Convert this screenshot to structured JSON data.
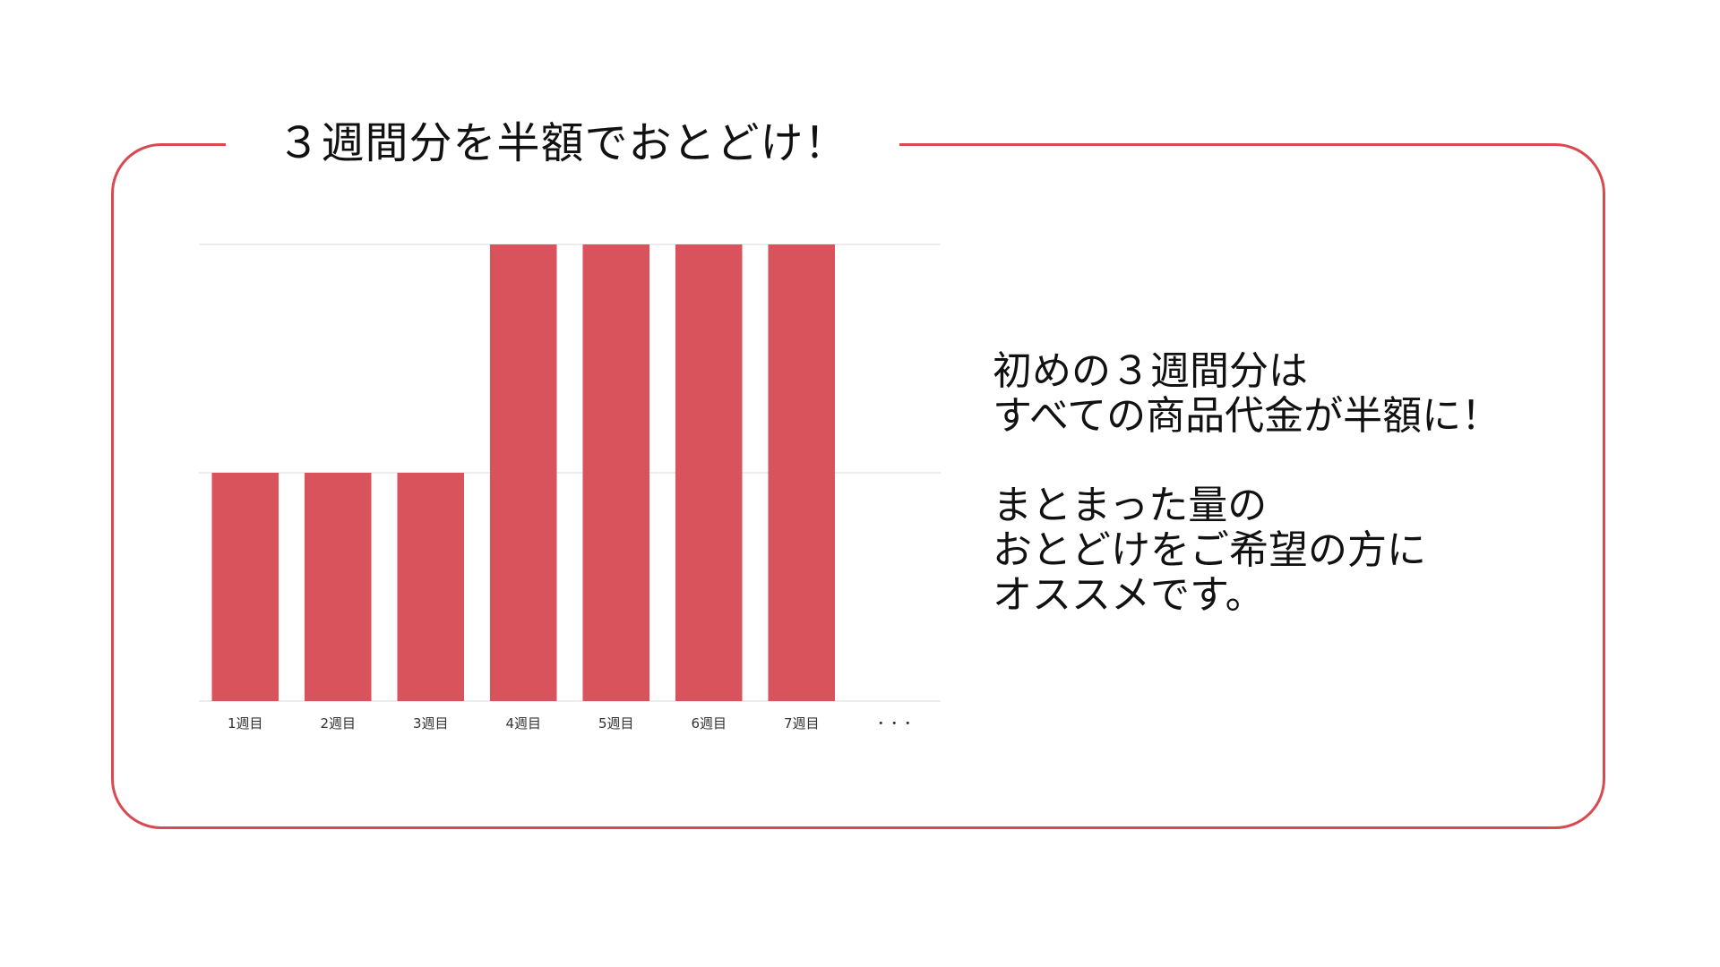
{
  "title": "３週間分を半額でおとどけ！",
  "colors": {
    "accent": "#d94a50",
    "bar": "#d9535c",
    "grid": "#d9d9d9",
    "text": "#111111"
  },
  "description": {
    "lines1": [
      "初めの３週間分は",
      "すべての商品代金が半額に！"
    ],
    "lines2": [
      "まとまった量の",
      "おとどけをご希望の方に",
      "オススメです。"
    ]
  },
  "chart_data": {
    "type": "bar",
    "categories": [
      "1週目",
      "2週目",
      "3週目",
      "4週目",
      "5週目",
      "6週目",
      "7週目",
      "・・・"
    ],
    "values": [
      1,
      1,
      1,
      2,
      2,
      2,
      2,
      null
    ],
    "ylim": [
      0,
      2
    ],
    "grid": true,
    "title": "",
    "xlabel": "",
    "ylabel": ""
  }
}
